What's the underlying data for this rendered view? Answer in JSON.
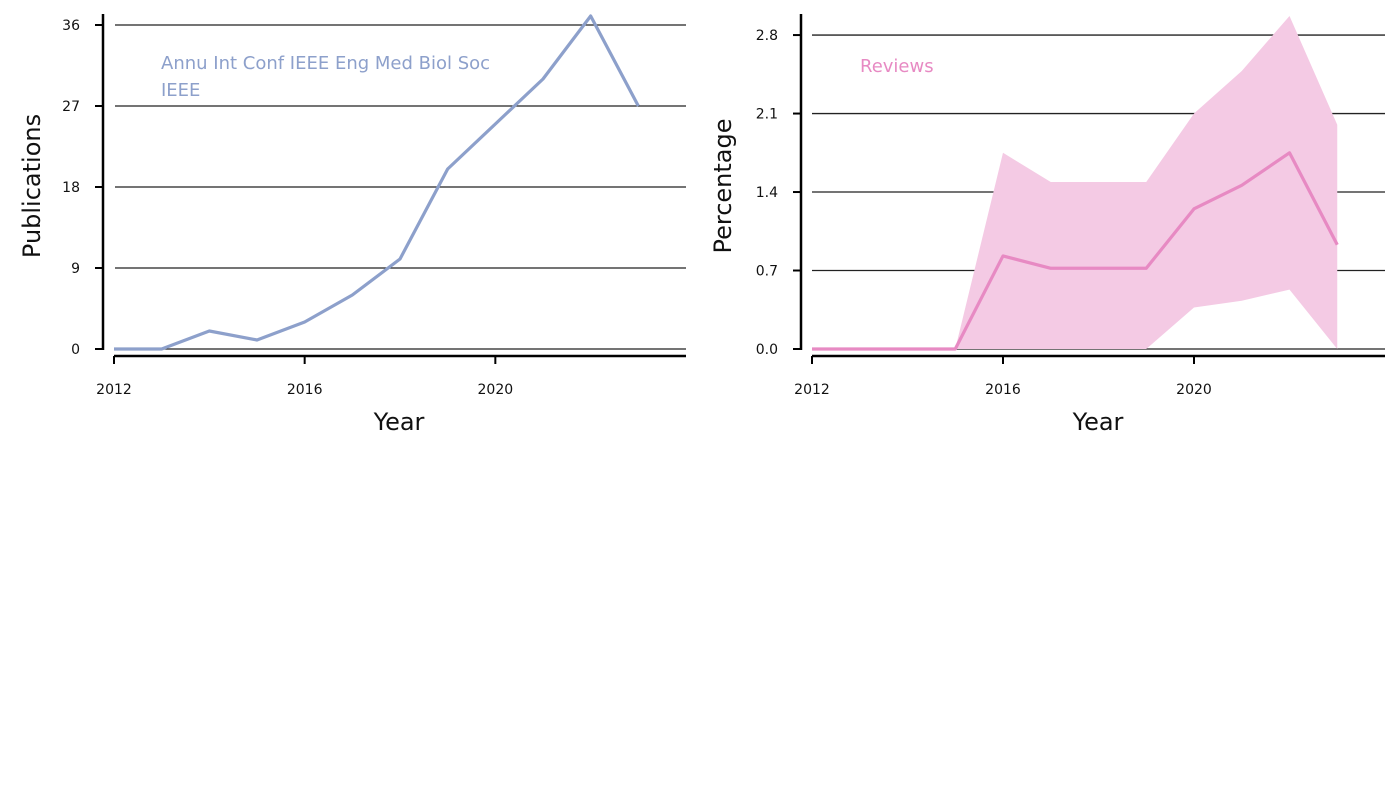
{
  "chart_data": [
    {
      "type": "line",
      "annotation": [
        "Annu Int Conf IEEE Eng Med Biol Soc",
        "IEEE"
      ],
      "xlabel": "Year",
      "ylabel": "Publications",
      "xlim": [
        2012,
        2024
      ],
      "ylim": [
        0,
        37
      ],
      "xticks": [
        2012,
        2016,
        2020
      ],
      "yticks": [
        0,
        9,
        18,
        27,
        36
      ],
      "grid": "horizontal",
      "color": "#8da0cb",
      "series": [
        {
          "x": [
            2012,
            2013,
            2014,
            2015,
            2016,
            2017,
            2018,
            2019,
            2020,
            2021,
            2022,
            2023
          ],
          "values": [
            0,
            0,
            2,
            1,
            3,
            6,
            10,
            20,
            25,
            30,
            37,
            27
          ]
        }
      ]
    },
    {
      "type": "area",
      "annotation": [
        "Reviews"
      ],
      "xlabel": "Year",
      "ylabel": "Percentage",
      "xlim": [
        2012,
        2024
      ],
      "ylim": [
        0,
        2.97
      ],
      "xticks": [
        2012,
        2016,
        2020
      ],
      "yticks": [
        0.0,
        0.7,
        1.4,
        2.1,
        2.8
      ],
      "ytick_labels": [
        "0.0",
        "0.7",
        "1.4",
        "2.1",
        "2.8"
      ],
      "grid": "horizontal",
      "color": "#e78ac3",
      "band_color": "#f4cae4",
      "series": [
        {
          "x": [
            2012,
            2013,
            2014,
            2015,
            2016,
            2017,
            2018,
            2019,
            2020,
            2021,
            2022,
            2023
          ],
          "values": [
            0,
            0,
            0,
            0,
            0.83,
            0.72,
            0.72,
            0.72,
            1.25,
            1.46,
            1.75,
            0.93
          ],
          "lower": [
            0,
            0,
            0,
            0,
            0,
            0,
            0,
            0,
            0.37,
            0.43,
            0.53,
            0
          ],
          "upper": [
            0,
            0,
            0,
            0,
            1.75,
            1.49,
            1.49,
            1.49,
            2.1,
            2.48,
            2.97,
            2.0
          ]
        }
      ]
    }
  ]
}
